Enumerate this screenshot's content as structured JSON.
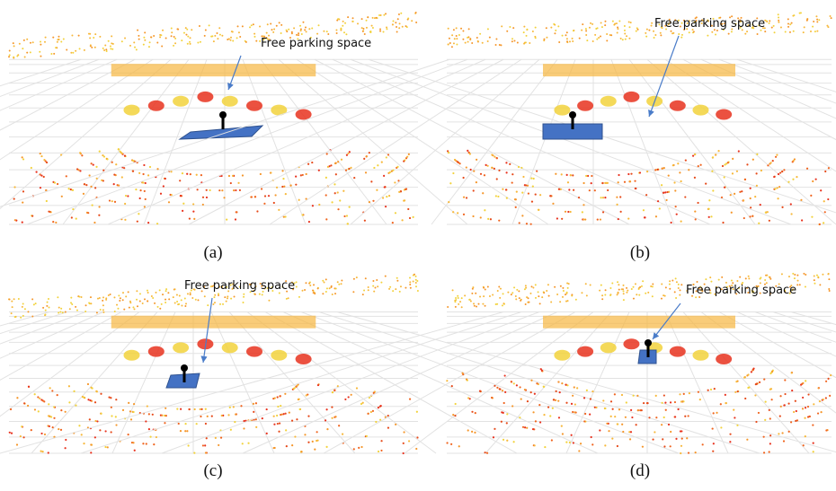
{
  "panels": [
    {
      "annotation": "Free parking space",
      "caption": "(a)"
    },
    {
      "annotation": "Free parking space",
      "caption": "(b)"
    },
    {
      "annotation": "Free parking space",
      "caption": "(c)"
    },
    {
      "annotation": "Free parking space",
      "caption": "(d)"
    }
  ]
}
